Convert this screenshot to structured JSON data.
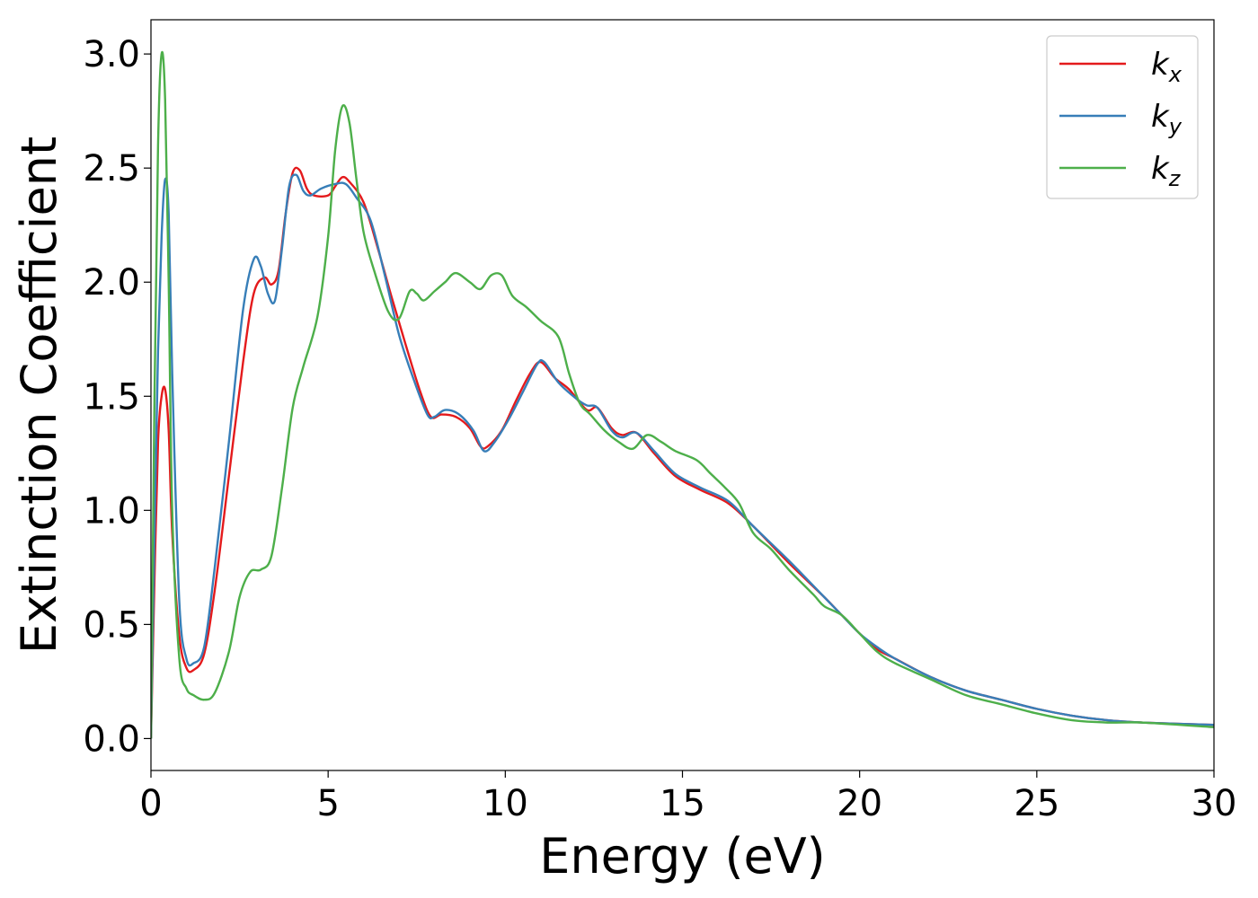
{
  "chart_data": {
    "type": "line",
    "xlabel": "Energy (eV)",
    "ylabel": "Extinction Coefficient",
    "xlim": [
      0,
      30
    ],
    "ylim": [
      -0.14,
      3.15
    ],
    "x_ticks": [
      "0",
      "5",
      "10",
      "15",
      "20",
      "25",
      "30"
    ],
    "y_ticks": [
      "0.0",
      "0.5",
      "1.0",
      "1.5",
      "2.0",
      "2.5",
      "3.0"
    ],
    "grid": false,
    "legend_position": "top-right",
    "series": [
      {
        "name": "k",
        "subscript": "x",
        "color": "#e41a1c",
        "points": [
          [
            0,
            0.0
          ],
          [
            0.1,
            0.7
          ],
          [
            0.2,
            1.3
          ],
          [
            0.3,
            1.5
          ],
          [
            0.4,
            1.53
          ],
          [
            0.5,
            1.35
          ],
          [
            0.6,
            0.9
          ],
          [
            0.8,
            0.45
          ],
          [
            1.0,
            0.31
          ],
          [
            1.2,
            0.3
          ],
          [
            1.5,
            0.37
          ],
          [
            1.8,
            0.65
          ],
          [
            2.2,
            1.15
          ],
          [
            2.6,
            1.65
          ],
          [
            2.9,
            1.95
          ],
          [
            3.2,
            2.02
          ],
          [
            3.4,
            1.99
          ],
          [
            3.6,
            2.05
          ],
          [
            3.8,
            2.3
          ],
          [
            4.0,
            2.48
          ],
          [
            4.2,
            2.49
          ],
          [
            4.4,
            2.41
          ],
          [
            4.6,
            2.38
          ],
          [
            5.0,
            2.38
          ],
          [
            5.2,
            2.42
          ],
          [
            5.4,
            2.46
          ],
          [
            5.6,
            2.44
          ],
          [
            6.0,
            2.35
          ],
          [
            6.4,
            2.15
          ],
          [
            6.8,
            1.93
          ],
          [
            7.2,
            1.72
          ],
          [
            7.6,
            1.52
          ],
          [
            7.9,
            1.41
          ],
          [
            8.2,
            1.42
          ],
          [
            8.6,
            1.41
          ],
          [
            9.0,
            1.36
          ],
          [
            9.3,
            1.28
          ],
          [
            9.5,
            1.28
          ],
          [
            9.9,
            1.35
          ],
          [
            10.3,
            1.48
          ],
          [
            10.7,
            1.6
          ],
          [
            11.0,
            1.65
          ],
          [
            11.4,
            1.58
          ],
          [
            11.8,
            1.53
          ],
          [
            12.3,
            1.44
          ],
          [
            12.6,
            1.45
          ],
          [
            13.0,
            1.36
          ],
          [
            13.3,
            1.33
          ],
          [
            13.7,
            1.34
          ],
          [
            14.2,
            1.25
          ],
          [
            14.8,
            1.15
          ],
          [
            15.5,
            1.09
          ],
          [
            16.3,
            1.03
          ],
          [
            17.0,
            0.93
          ],
          [
            18.0,
            0.77
          ],
          [
            19.0,
            0.62
          ],
          [
            19.5,
            0.54
          ],
          [
            20.0,
            0.46
          ],
          [
            20.5,
            0.39
          ],
          [
            21.0,
            0.35
          ],
          [
            22.0,
            0.27
          ],
          [
            23.0,
            0.21
          ],
          [
            24.0,
            0.17
          ],
          [
            25.0,
            0.13
          ],
          [
            26.0,
            0.1
          ],
          [
            27.0,
            0.08
          ],
          [
            28.0,
            0.07
          ],
          [
            30.0,
            0.06
          ]
        ]
      },
      {
        "name": "k",
        "subscript": "y",
        "color": "#377eb8",
        "points": [
          [
            0,
            0.0
          ],
          [
            0.1,
            0.9
          ],
          [
            0.2,
            1.7
          ],
          [
            0.3,
            2.2
          ],
          [
            0.4,
            2.45
          ],
          [
            0.5,
            2.3
          ],
          [
            0.6,
            1.6
          ],
          [
            0.8,
            0.6
          ],
          [
            1.0,
            0.35
          ],
          [
            1.2,
            0.33
          ],
          [
            1.5,
            0.4
          ],
          [
            1.8,
            0.75
          ],
          [
            2.2,
            1.3
          ],
          [
            2.6,
            1.88
          ],
          [
            2.9,
            2.1
          ],
          [
            3.1,
            2.07
          ],
          [
            3.3,
            1.95
          ],
          [
            3.5,
            1.92
          ],
          [
            3.7,
            2.15
          ],
          [
            3.9,
            2.42
          ],
          [
            4.1,
            2.47
          ],
          [
            4.3,
            2.4
          ],
          [
            4.5,
            2.38
          ],
          [
            4.8,
            2.41
          ],
          [
            5.2,
            2.43
          ],
          [
            5.5,
            2.43
          ],
          [
            5.8,
            2.37
          ],
          [
            6.2,
            2.27
          ],
          [
            6.6,
            2.03
          ],
          [
            7.0,
            1.77
          ],
          [
            7.4,
            1.58
          ],
          [
            7.8,
            1.42
          ],
          [
            8.0,
            1.41
          ],
          [
            8.3,
            1.44
          ],
          [
            8.7,
            1.42
          ],
          [
            9.1,
            1.35
          ],
          [
            9.4,
            1.26
          ],
          [
            9.7,
            1.3
          ],
          [
            10.1,
            1.4
          ],
          [
            10.5,
            1.52
          ],
          [
            10.9,
            1.64
          ],
          [
            11.1,
            1.65
          ],
          [
            11.5,
            1.56
          ],
          [
            12.0,
            1.49
          ],
          [
            12.3,
            1.46
          ],
          [
            12.6,
            1.45
          ],
          [
            13.0,
            1.35
          ],
          [
            13.3,
            1.32
          ],
          [
            13.7,
            1.34
          ],
          [
            14.2,
            1.26
          ],
          [
            14.8,
            1.16
          ],
          [
            15.5,
            1.1
          ],
          [
            16.3,
            1.04
          ],
          [
            17.0,
            0.93
          ],
          [
            18.0,
            0.78
          ],
          [
            19.0,
            0.62
          ],
          [
            19.5,
            0.54
          ],
          [
            20.0,
            0.46
          ],
          [
            20.5,
            0.4
          ],
          [
            21.0,
            0.35
          ],
          [
            22.0,
            0.27
          ],
          [
            23.0,
            0.21
          ],
          [
            24.0,
            0.17
          ],
          [
            25.0,
            0.13
          ],
          [
            26.0,
            0.1
          ],
          [
            27.0,
            0.08
          ],
          [
            28.0,
            0.07
          ],
          [
            30.0,
            0.06
          ]
        ]
      },
      {
        "name": "k",
        "subscript": "z",
        "color": "#4daf4a",
        "points": [
          [
            0,
            0.0
          ],
          [
            0.1,
            1.5
          ],
          [
            0.2,
            2.6
          ],
          [
            0.3,
            3.0
          ],
          [
            0.4,
            2.8
          ],
          [
            0.5,
            2.0
          ],
          [
            0.6,
            1.0
          ],
          [
            0.8,
            0.35
          ],
          [
            1.0,
            0.22
          ],
          [
            1.2,
            0.19
          ],
          [
            1.5,
            0.17
          ],
          [
            1.8,
            0.2
          ],
          [
            2.2,
            0.38
          ],
          [
            2.5,
            0.62
          ],
          [
            2.8,
            0.73
          ],
          [
            3.1,
            0.74
          ],
          [
            3.4,
            0.8
          ],
          [
            3.7,
            1.1
          ],
          [
            4.0,
            1.45
          ],
          [
            4.3,
            1.63
          ],
          [
            4.7,
            1.85
          ],
          [
            5.0,
            2.2
          ],
          [
            5.2,
            2.58
          ],
          [
            5.4,
            2.77
          ],
          [
            5.6,
            2.7
          ],
          [
            5.8,
            2.45
          ],
          [
            6.0,
            2.22
          ],
          [
            6.3,
            2.05
          ],
          [
            6.7,
            1.87
          ],
          [
            7.0,
            1.84
          ],
          [
            7.3,
            1.96
          ],
          [
            7.5,
            1.95
          ],
          [
            7.7,
            1.92
          ],
          [
            8.0,
            1.96
          ],
          [
            8.3,
            2.0
          ],
          [
            8.6,
            2.04
          ],
          [
            9.0,
            2.0
          ],
          [
            9.3,
            1.97
          ],
          [
            9.6,
            2.03
          ],
          [
            9.9,
            2.03
          ],
          [
            10.2,
            1.94
          ],
          [
            10.6,
            1.89
          ],
          [
            11.0,
            1.83
          ],
          [
            11.5,
            1.76
          ],
          [
            11.8,
            1.6
          ],
          [
            12.1,
            1.47
          ],
          [
            12.4,
            1.42
          ],
          [
            12.8,
            1.35
          ],
          [
            13.2,
            1.3
          ],
          [
            13.6,
            1.27
          ],
          [
            14.0,
            1.33
          ],
          [
            14.4,
            1.3
          ],
          [
            14.8,
            1.26
          ],
          [
            15.4,
            1.22
          ],
          [
            15.8,
            1.16
          ],
          [
            16.2,
            1.1
          ],
          [
            16.6,
            1.03
          ],
          [
            17.0,
            0.9
          ],
          [
            17.5,
            0.83
          ],
          [
            18.0,
            0.74
          ],
          [
            18.7,
            0.63
          ],
          [
            19.0,
            0.58
          ],
          [
            19.5,
            0.54
          ],
          [
            20.0,
            0.46
          ],
          [
            20.5,
            0.38
          ],
          [
            21.0,
            0.33
          ],
          [
            22.0,
            0.26
          ],
          [
            23.0,
            0.19
          ],
          [
            24.0,
            0.15
          ],
          [
            25.0,
            0.11
          ],
          [
            26.0,
            0.08
          ],
          [
            27.0,
            0.07
          ],
          [
            28.0,
            0.07
          ],
          [
            30.0,
            0.05
          ]
        ]
      }
    ]
  }
}
